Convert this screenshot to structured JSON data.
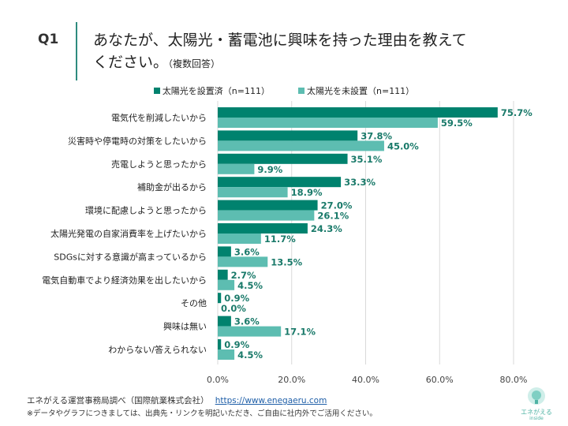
{
  "header": {
    "q": "Q1",
    "title_line1": "あなたが、太陽光・蓄電池に興味を持った理由を教えて",
    "title_line2": "ください。",
    "title_note": "（複数回答）"
  },
  "colors": {
    "installed": "#00826e",
    "not_installed": "#5dbdb1",
    "label": "#1a7a6a",
    "grid": "#d9d9d9"
  },
  "chart_data": {
    "type": "bar",
    "orientation": "horizontal",
    "categories": [
      "電気代を削減したいから",
      "災害時や停電時の対策をしたいから",
      "売電しようと思ったから",
      "補助金が出るから",
      "環境に配慮しようと思ったから",
      "太陽光発電の自家消費率を上げたいから",
      "SDGsに対する意識が高まっているから",
      "電気自動車でより経済効果を出したいから",
      "その他",
      "興味は無い",
      "わからない/答えられない"
    ],
    "series": [
      {
        "name": "太陽光を設置済（n=111）",
        "values": [
          75.7,
          37.8,
          35.1,
          33.3,
          27.0,
          24.3,
          3.6,
          2.7,
          0.9,
          3.6,
          0.9
        ]
      },
      {
        "name": "太陽光を未設置（n=111）",
        "values": [
          59.5,
          45.0,
          9.9,
          18.9,
          26.1,
          11.7,
          13.5,
          4.5,
          0.0,
          17.1,
          4.5
        ]
      }
    ],
    "xlim": [
      0,
      80
    ],
    "ticks": [
      "0.0%",
      "20.0%",
      "40.0%",
      "60.0%",
      "80.0%"
    ],
    "grid": true,
    "legend": "top"
  },
  "footer": {
    "source": "エネがえる運営事務局調べ（国際航業株式会社）",
    "url": "https://www.enegaeru.com",
    "note": "※データやグラフにつきましては、出典先・リンクを明記いただき、ご自由に社内外でご活用ください。"
  },
  "logo": {
    "text": "エネがえる",
    "sub": "inside"
  }
}
